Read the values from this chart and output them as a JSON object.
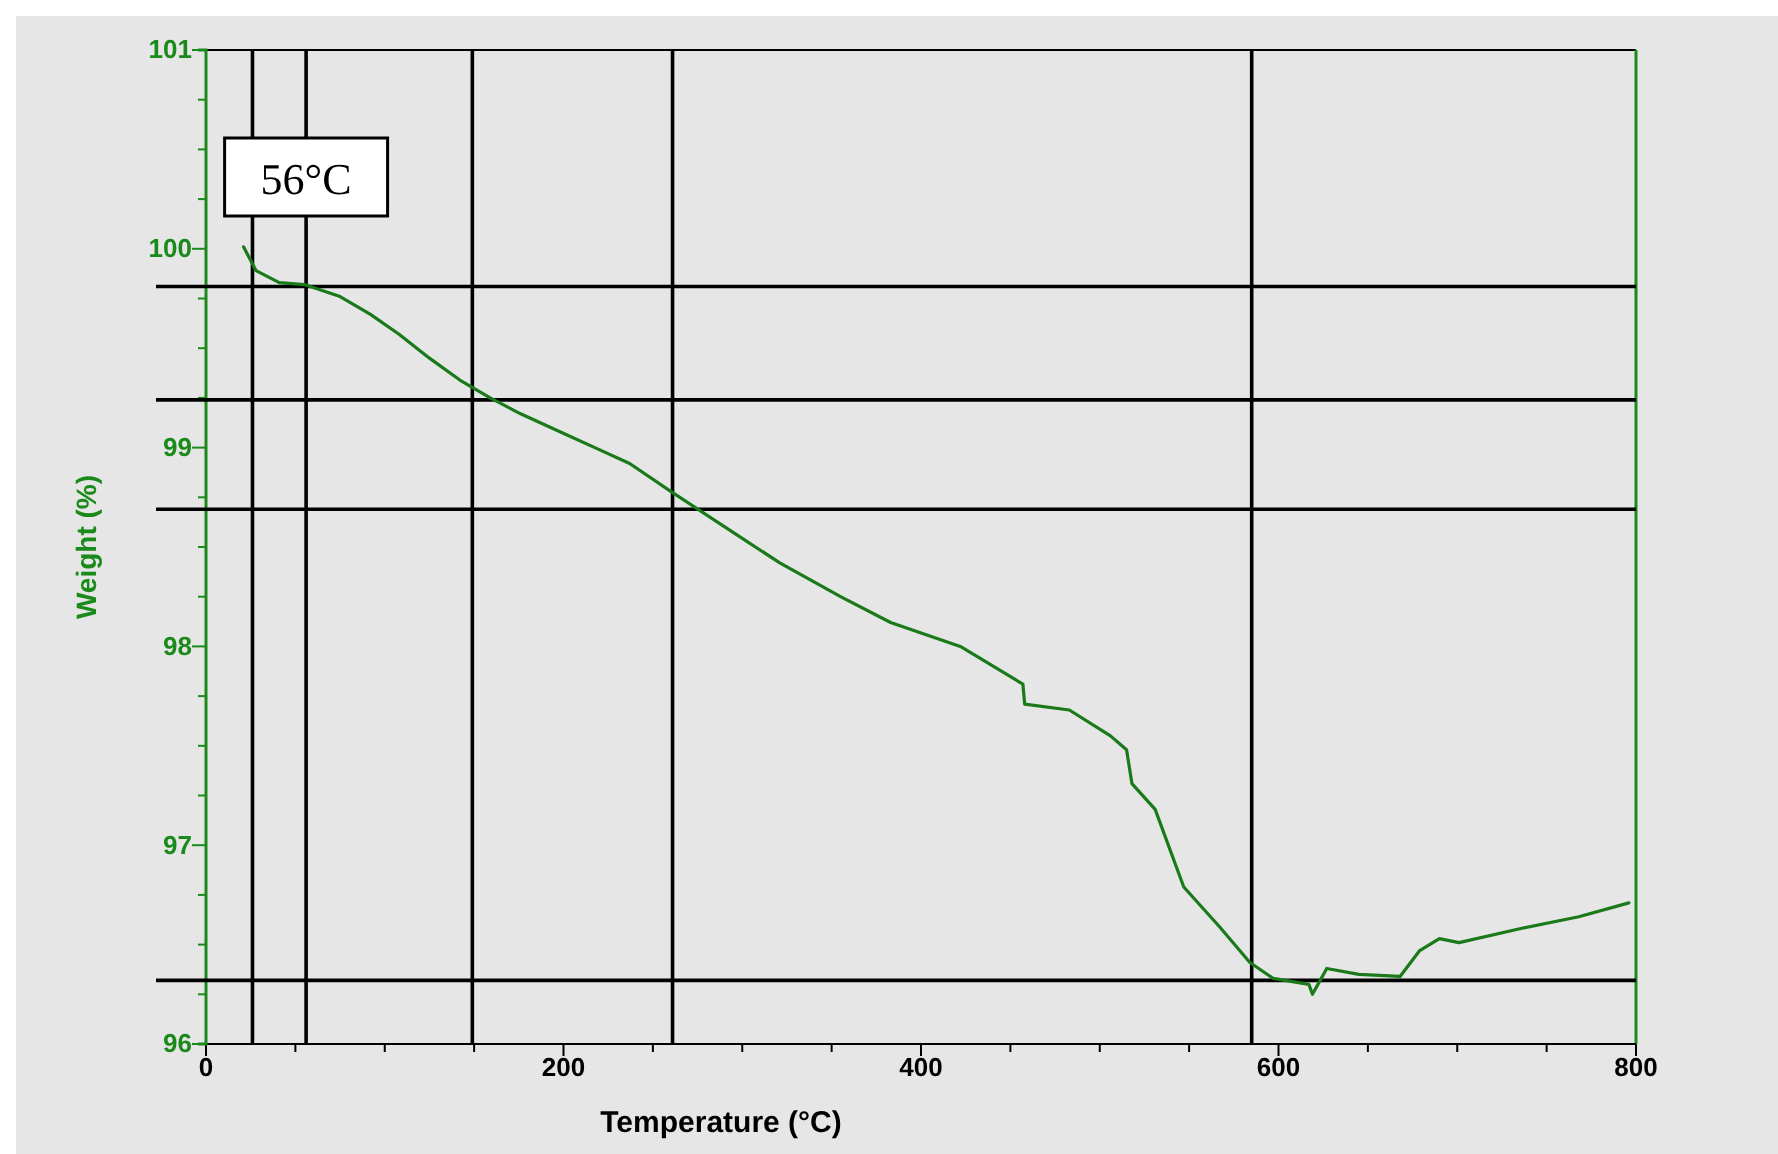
{
  "chart_data": {
    "type": "line",
    "xlabel": "Temperature (°C)",
    "ylabel": "Weight (%)",
    "xlim": [
      0,
      800
    ],
    "ylim": [
      96,
      101
    ],
    "xticks": [
      0,
      {
        "value": 50,
        "label": null
      },
      {
        "value": 100,
        "label": null
      },
      {
        "value": 150,
        "label": null
      },
      200,
      {
        "value": 250,
        "label": null
      },
      {
        "value": 300,
        "label": null
      },
      {
        "value": 350,
        "label": null
      },
      400,
      {
        "value": 450,
        "label": null
      },
      {
        "value": 500,
        "label": null
      },
      {
        "value": 550,
        "label": null
      },
      600,
      {
        "value": 650,
        "label": null
      },
      {
        "value": 700,
        "label": null
      },
      {
        "value": 750,
        "label": null
      },
      800
    ],
    "yticks": [
      96,
      {
        "value": 96.25,
        "label": null
      },
      {
        "value": 96.5,
        "label": null
      },
      {
        "value": 96.75,
        "label": null
      },
      97,
      {
        "value": 97.25,
        "label": null
      },
      {
        "value": 97.5,
        "label": null
      },
      {
        "value": 97.75,
        "label": null
      },
      98,
      {
        "value": 98.25,
        "label": null
      },
      {
        "value": 98.5,
        "label": null
      },
      {
        "value": 98.75,
        "label": null
      },
      99,
      {
        "value": 99.25,
        "label": null
      },
      {
        "value": 99.5,
        "label": null
      },
      {
        "value": 99.75,
        "label": null
      },
      100,
      {
        "value": 100.25,
        "label": null
      },
      {
        "value": 100.5,
        "label": null
      },
      {
        "value": 100.75,
        "label": null
      },
      101
    ],
    "grid": false,
    "marker": "none",
    "line_style": "solid",
    "series": [
      {
        "color": "#1a7a1a",
        "x": [
          21,
          28,
          41,
          55,
          75,
          92,
          108,
          125,
          142,
          159,
          176,
          198,
          220,
          237,
          260,
          287,
          321,
          355,
          383,
          422,
          457,
          458,
          483,
          506,
          515,
          518,
          531,
          547,
          567,
          584,
          597,
          617,
          619,
          627,
          645,
          668,
          679,
          690,
          701,
          735,
          768,
          796
        ],
        "values": [
          100.01,
          99.89,
          99.83,
          99.82,
          99.76,
          99.67,
          99.57,
          99.45,
          99.34,
          99.25,
          99.17,
          99.08,
          98.99,
          98.92,
          98.78,
          98.62,
          98.42,
          98.25,
          98.12,
          98.0,
          97.81,
          97.71,
          97.68,
          97.55,
          97.48,
          97.31,
          97.18,
          96.79,
          96.59,
          96.41,
          96.33,
          96.3,
          96.25,
          96.38,
          96.35,
          96.34,
          96.47,
          96.53,
          96.51,
          96.58,
          96.64,
          96.71
        ]
      }
    ],
    "ref_lines": [
      {
        "axis": "x",
        "value": 26,
        "color": "#000000"
      },
      {
        "axis": "x",
        "value": 56,
        "label": "56°C",
        "color": "#000000"
      },
      {
        "axis": "x",
        "value": 149,
        "color": "#000000"
      },
      {
        "axis": "x",
        "value": 261,
        "color": "#000000"
      },
      {
        "axis": "x",
        "value": 585,
        "color": "#000000"
      },
      {
        "axis": "y",
        "value": 99.81,
        "color": "#000000"
      },
      {
        "axis": "y",
        "value": 99.24,
        "color": "#000000"
      },
      {
        "axis": "y",
        "value": 98.69,
        "color": "#000000"
      },
      {
        "axis": "y",
        "value": 96.32,
        "color": "#000000"
      }
    ]
  }
}
